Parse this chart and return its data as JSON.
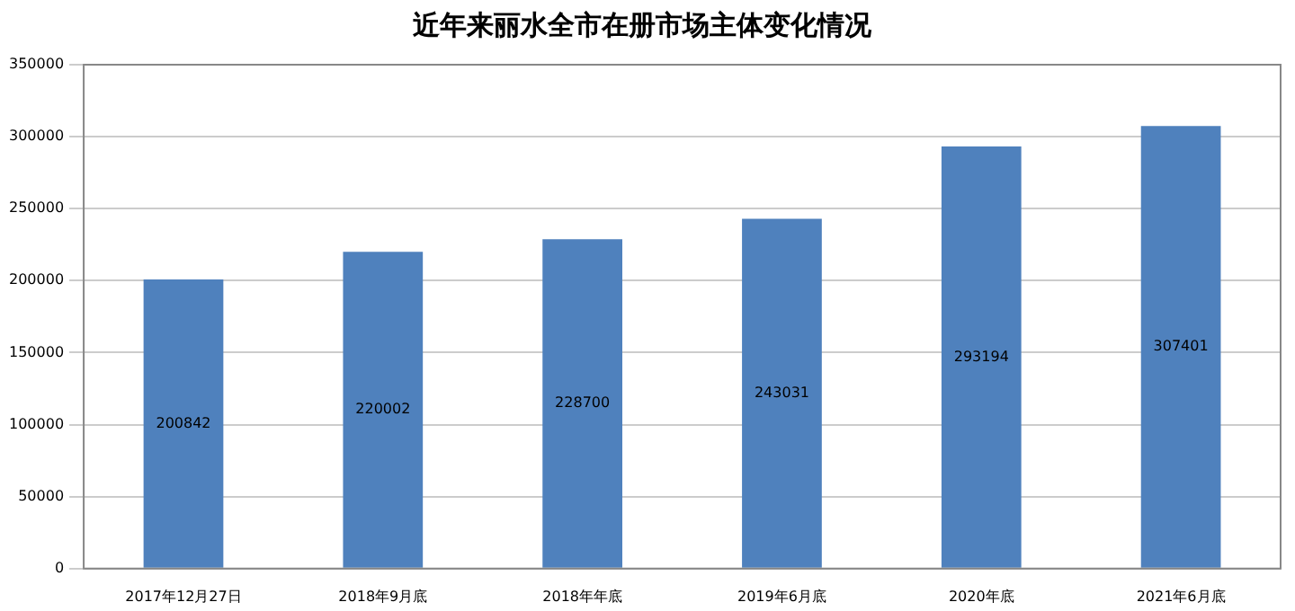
{
  "chart_data": {
    "type": "bar",
    "title": "近年来丽水全市在册市场主体变化情况",
    "categories": [
      "2017年12月27日",
      "2018年9月底",
      "2018年年底",
      "2019年6月底",
      "2020年底",
      "2021年6月底"
    ],
    "values": [
      200842,
      220002,
      228700,
      243031,
      293194,
      307401
    ],
    "color": "#4f81bd",
    "ylim": [
      0,
      350000
    ],
    "yticks": [
      0,
      50000,
      100000,
      150000,
      200000,
      250000,
      300000,
      350000
    ],
    "grid": "y",
    "data_labels": true,
    "legend": false
  }
}
